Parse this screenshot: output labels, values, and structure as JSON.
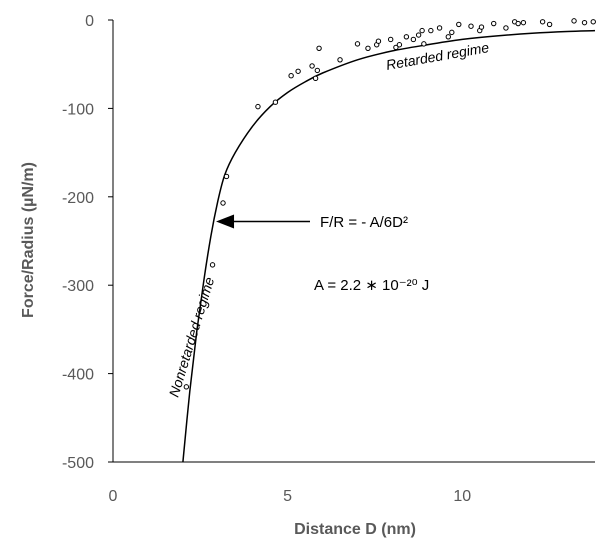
{
  "chart_data": {
    "type": "scatter",
    "title": "",
    "xlabel": "Distance D (nm)",
    "ylabel": "Force/Radius (µN/m)",
    "xlim": [
      0,
      13.8
    ],
    "ylim": [
      -500,
      0
    ],
    "x_ticks": [
      0,
      5,
      10
    ],
    "x_tick_labels": [
      "0",
      "5",
      "10"
    ],
    "y_ticks": [
      0,
      -100,
      -200,
      -300,
      -400,
      -500
    ],
    "y_tick_labels": [
      "0",
      "-100",
      "-200",
      "-300",
      "-400",
      "-500"
    ],
    "grid": false,
    "legend": "none",
    "colors": {
      "axis": "#000000",
      "text": "#595959",
      "series": "#000000"
    },
    "series": [
      {
        "marker": "open-circle",
        "x": [
          2.1,
          2.85,
          3.15,
          3.25,
          4.15,
          4.65,
          5.1,
          5.3,
          5.7,
          5.8,
          5.85,
          5.9,
          6.5,
          7.0,
          7.3,
          7.55,
          7.6,
          7.95,
          8.1,
          8.2,
          8.4,
          8.6,
          8.75,
          8.85,
          8.9,
          9.1,
          9.35,
          9.6,
          9.7,
          9.9,
          10.25,
          10.5,
          10.55,
          10.9,
          11.25,
          11.5,
          11.6,
          11.75,
          12.3,
          12.5,
          13.2,
          13.5,
          13.75
        ],
        "y": [
          -415,
          -277,
          -207,
          -177,
          -98,
          -93,
          -63,
          -58,
          -52,
          -66,
          -57,
          -32,
          -45,
          -27,
          -32,
          -28,
          -24,
          -22,
          -31,
          -28,
          -19,
          -22,
          -17,
          -12,
          -27,
          -12,
          -9,
          -19,
          -14,
          -5,
          -7,
          -12,
          -8,
          -4,
          -9,
          -2,
          -4,
          -3,
          -2,
          -5,
          -1,
          -3,
          -2
        ]
      }
    ],
    "fit_curve": {
      "style": "solid-line",
      "x": [
        2.0,
        2.2,
        2.4,
        2.6,
        2.8,
        3.0,
        3.2,
        3.5,
        4.0,
        4.5,
        5.0,
        5.5,
        6.0,
        7.0,
        8.0,
        9.0,
        10.0,
        11.0,
        12.0,
        13.0,
        13.8
      ],
      "y": [
        -500,
        -420,
        -352,
        -295,
        -245,
        -205,
        -175,
        -150,
        -120,
        -98,
        -82,
        -70,
        -60,
        -45,
        -35,
        -28,
        -22,
        -18,
        -15,
        -13,
        -12
      ]
    },
    "annotations": {
      "equation": "F/R = - A/6D²",
      "hamaker": "A = 2.2 ∗ 10⁻²⁰ J",
      "retarded": "Retarded regime",
      "nonretarded": "Nonretarded regime",
      "arrow_target": {
        "x": 2.95,
        "y": -228
      }
    }
  }
}
